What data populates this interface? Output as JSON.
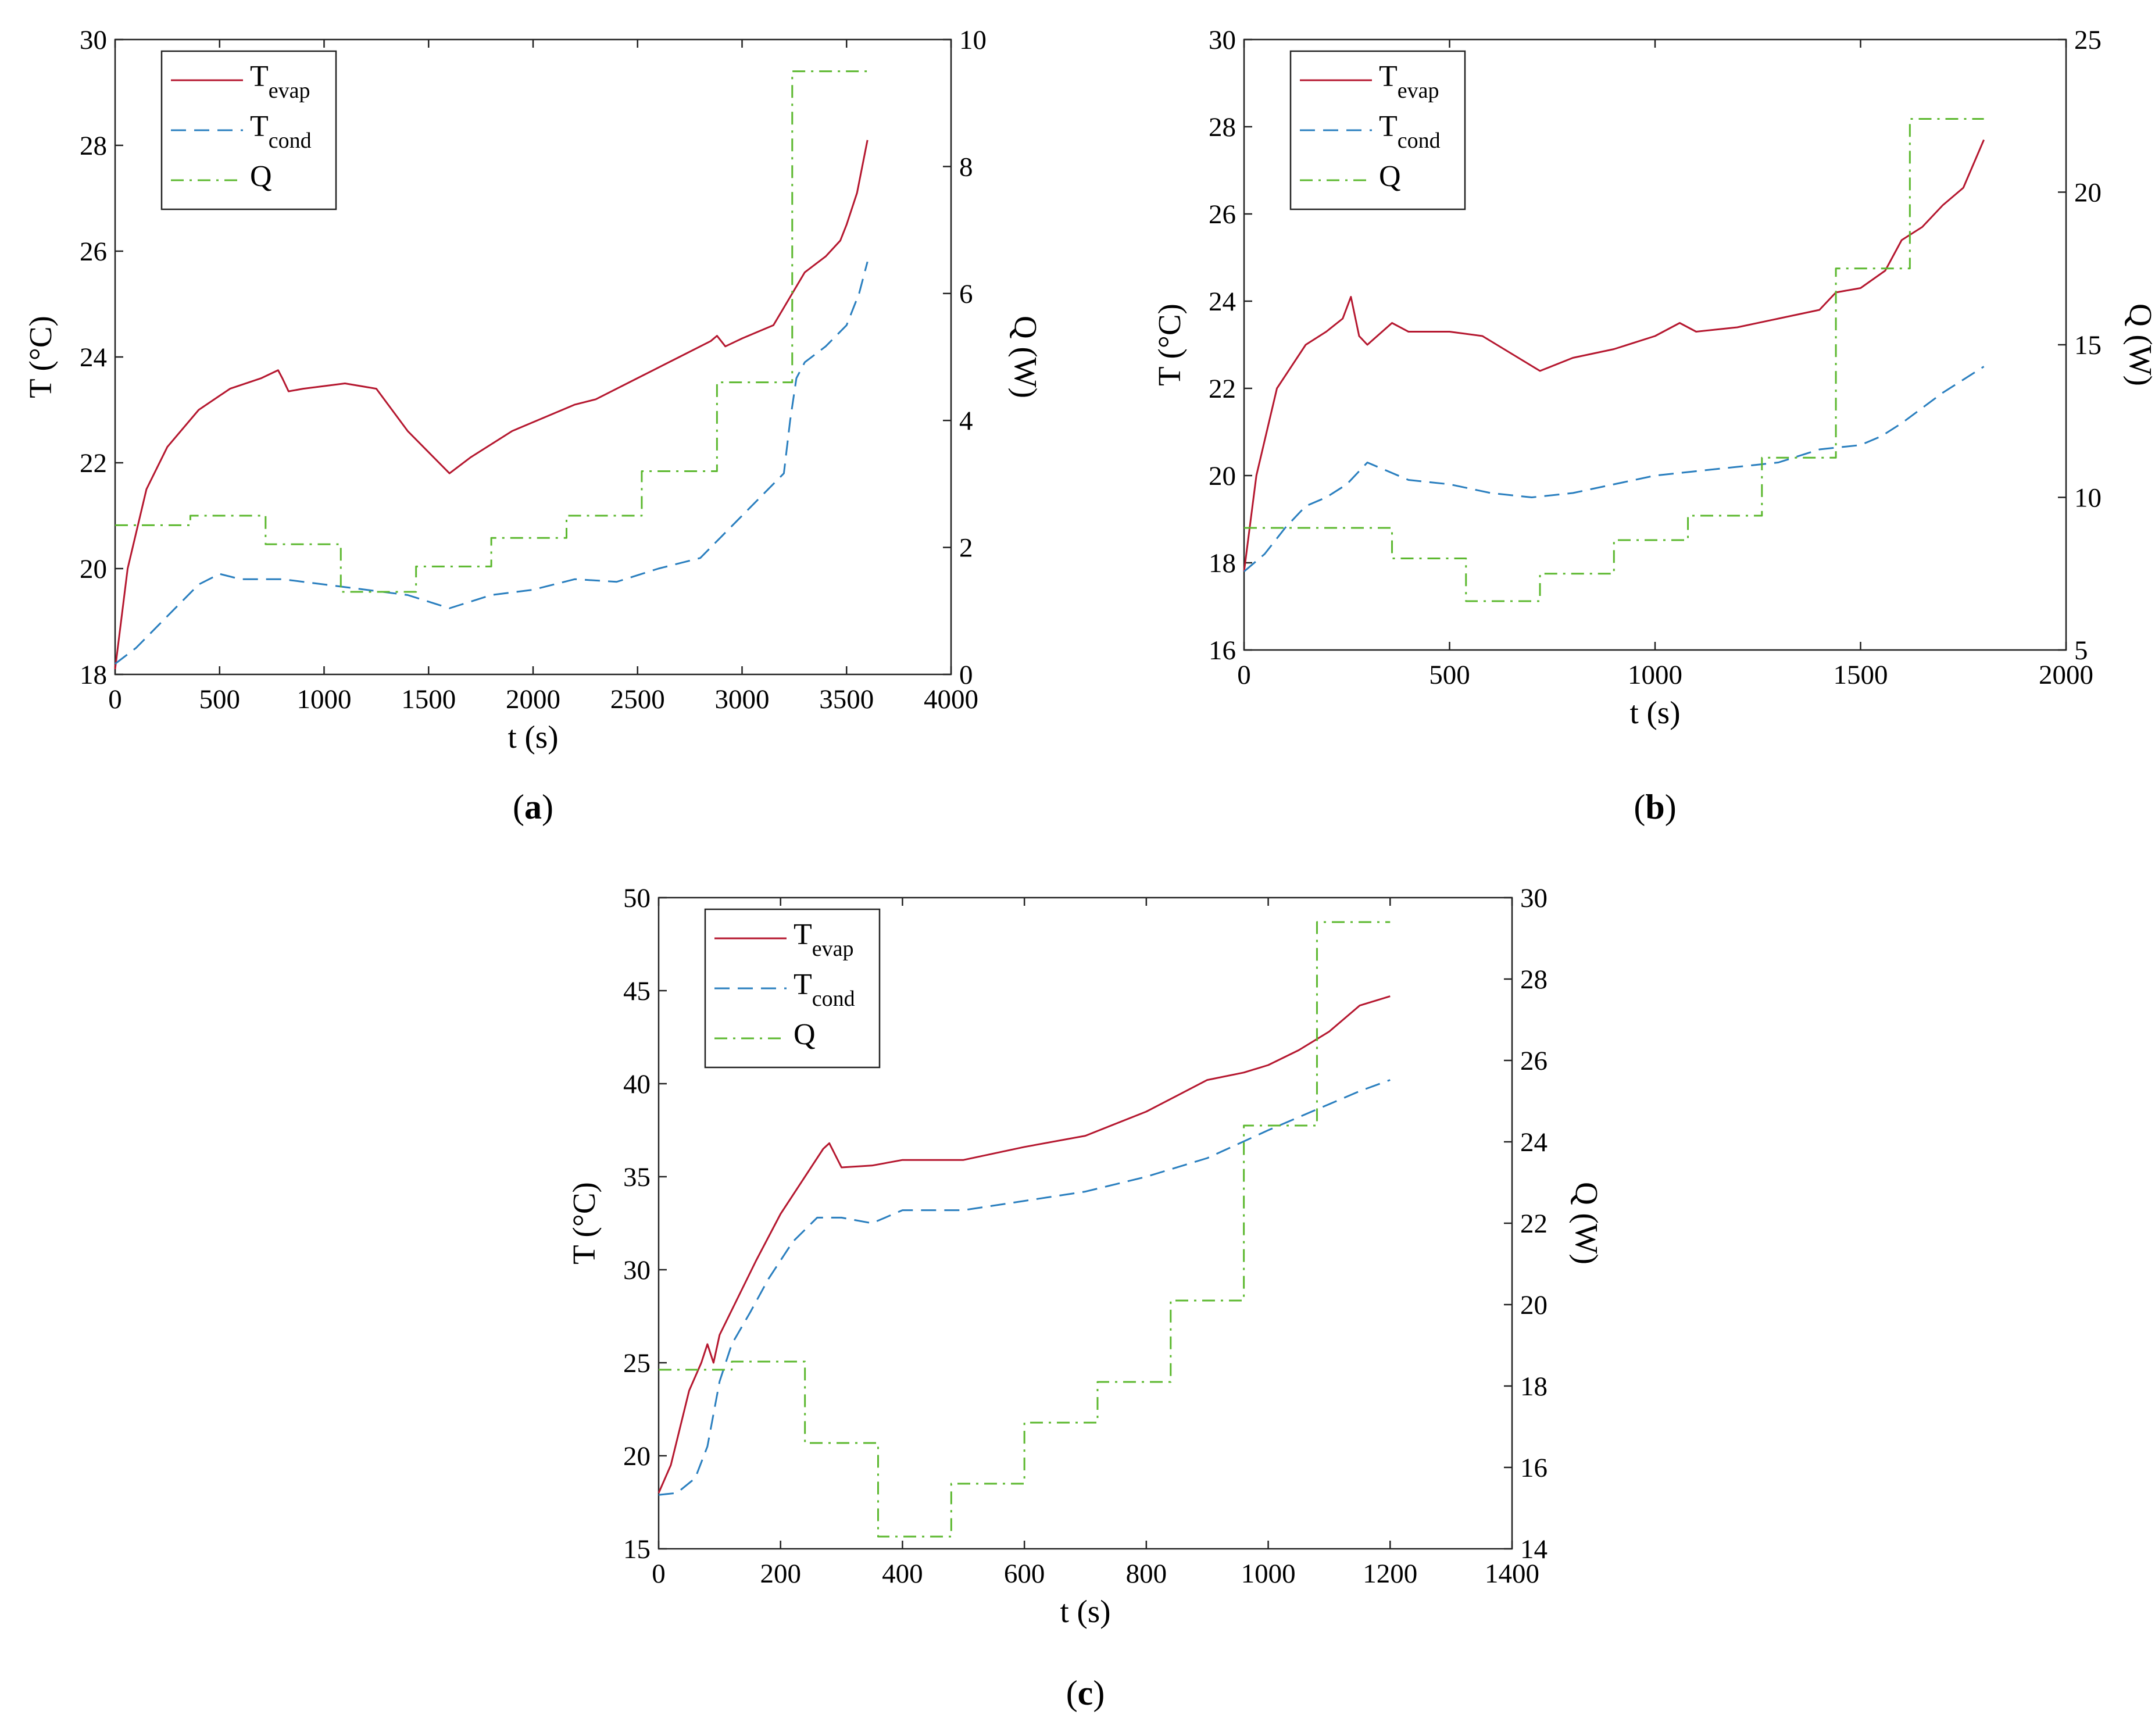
{
  "chart_data": [
    {
      "id": "a",
      "type": "line",
      "panel_label": "a",
      "xlabel": "t (s)",
      "ylabel_left": "T (°C)",
      "ylabel_right": "Q (W)",
      "xlim": [
        0,
        4000
      ],
      "ylim_left": [
        18,
        30
      ],
      "ylim_right": [
        0,
        10
      ],
      "xticks": [
        0,
        500,
        1000,
        1500,
        2000,
        2500,
        3000,
        3500,
        4000
      ],
      "yticks_left": [
        18,
        20,
        22,
        24,
        26,
        28,
        30
      ],
      "yticks_right": [
        0,
        2,
        4,
        6,
        8,
        10
      ],
      "legend": [
        {
          "main": "T",
          "sub": "evap",
          "style": "solid",
          "color": "#b5172f"
        },
        {
          "main": "T",
          "sub": "cond",
          "style": "dashed",
          "color": "#2a7fbf"
        },
        {
          "main": "Q",
          "sub": "",
          "style": "dashdot",
          "color": "#5cb82f"
        }
      ],
      "series": [
        {
          "name": "T_evap",
          "axis": "left",
          "color": "#b5172f",
          "style": "solid",
          "x": [
            0,
            60,
            150,
            250,
            400,
            550,
            700,
            780,
            800,
            830,
            900,
            1100,
            1250,
            1400,
            1500,
            1600,
            1700,
            1900,
            2200,
            2300,
            2500,
            2700,
            2850,
            2880,
            2920,
            3000,
            3150,
            3240,
            3300,
            3400,
            3470,
            3500,
            3550,
            3600
          ],
          "y": [
            18.1,
            20.0,
            21.5,
            22.3,
            23.0,
            23.4,
            23.6,
            23.75,
            23.6,
            23.35,
            23.4,
            23.5,
            23.4,
            22.6,
            22.2,
            21.8,
            22.1,
            22.6,
            23.1,
            23.2,
            23.6,
            24.0,
            24.3,
            24.4,
            24.2,
            24.35,
            24.6,
            25.2,
            25.6,
            25.9,
            26.2,
            26.5,
            27.1,
            28.1
          ]
        },
        {
          "name": "T_cond",
          "axis": "left",
          "color": "#2a7fbf",
          "style": "dashed",
          "x": [
            0,
            100,
            200,
            300,
            400,
            500,
            600,
            800,
            1000,
            1200,
            1400,
            1600,
            1800,
            2000,
            2200,
            2400,
            2600,
            2800,
            2900,
            3000,
            3100,
            3200,
            3230,
            3260,
            3300,
            3400,
            3500,
            3560,
            3600
          ],
          "y": [
            18.2,
            18.5,
            18.9,
            19.3,
            19.7,
            19.9,
            19.8,
            19.8,
            19.7,
            19.6,
            19.5,
            19.25,
            19.5,
            19.6,
            19.8,
            19.75,
            20.0,
            20.2,
            20.6,
            21.0,
            21.4,
            21.8,
            22.8,
            23.6,
            23.9,
            24.2,
            24.6,
            25.2,
            25.8
          ]
        },
        {
          "name": "Q",
          "axis": "right",
          "color": "#5cb82f",
          "style": "dashdot",
          "step": true,
          "x": [
            0,
            360,
            720,
            1080,
            1440,
            1800,
            2160,
            2520,
            2880,
            3240,
            3600
          ],
          "y": [
            2.35,
            2.5,
            2.05,
            1.3,
            1.7,
            2.15,
            2.5,
            3.2,
            4.6,
            9.5,
            9.5
          ]
        }
      ]
    },
    {
      "id": "b",
      "type": "line",
      "panel_label": "b",
      "xlabel": "t (s)",
      "ylabel_left": "T (°C)",
      "ylabel_right": "Q (W)",
      "xlim": [
        0,
        2000
      ],
      "ylim_left": [
        16,
        30
      ],
      "ylim_right": [
        5,
        25
      ],
      "xticks": [
        0,
        500,
        1000,
        1500,
        2000
      ],
      "yticks_left": [
        16,
        18,
        20,
        22,
        24,
        26,
        28,
        30
      ],
      "yticks_right": [
        5,
        10,
        15,
        20,
        25
      ],
      "legend": [
        {
          "main": "T",
          "sub": "evap",
          "style": "solid",
          "color": "#b5172f"
        },
        {
          "main": "T",
          "sub": "cond",
          "style": "dashed",
          "color": "#2a7fbf"
        },
        {
          "main": "Q",
          "sub": "",
          "style": "dashdot",
          "color": "#5cb82f"
        }
      ],
      "series": [
        {
          "name": "T_evap",
          "axis": "left",
          "color": "#b5172f",
          "style": "solid",
          "x": [
            0,
            30,
            80,
            150,
            200,
            240,
            260,
            280,
            300,
            360,
            400,
            500,
            580,
            650,
            720,
            800,
            900,
            1000,
            1060,
            1100,
            1200,
            1300,
            1400,
            1440,
            1500,
            1560,
            1600,
            1650,
            1700,
            1750,
            1800
          ],
          "y": [
            17.8,
            20.0,
            22.0,
            23.0,
            23.3,
            23.6,
            24.1,
            23.2,
            23.0,
            23.5,
            23.3,
            23.3,
            23.2,
            22.8,
            22.4,
            22.7,
            22.9,
            23.2,
            23.5,
            23.3,
            23.4,
            23.6,
            23.8,
            24.2,
            24.3,
            24.7,
            25.4,
            25.7,
            26.2,
            26.6,
            27.7
          ]
        },
        {
          "name": "T_cond",
          "axis": "left",
          "color": "#2a7fbf",
          "style": "dashed",
          "x": [
            0,
            50,
            100,
            150,
            200,
            250,
            300,
            350,
            400,
            500,
            600,
            700,
            800,
            900,
            1000,
            1100,
            1200,
            1300,
            1400,
            1500,
            1550,
            1600,
            1700,
            1800
          ],
          "y": [
            17.8,
            18.2,
            18.8,
            19.3,
            19.5,
            19.8,
            20.3,
            20.1,
            19.9,
            19.8,
            19.6,
            19.5,
            19.6,
            19.8,
            20.0,
            20.1,
            20.2,
            20.3,
            20.6,
            20.7,
            20.9,
            21.2,
            21.9,
            22.5
          ]
        },
        {
          "name": "Q",
          "axis": "right",
          "color": "#5cb82f",
          "style": "dashdot",
          "step": true,
          "x": [
            0,
            180,
            360,
            540,
            720,
            900,
            1080,
            1260,
            1440,
            1620,
            1800
          ],
          "y": [
            9.0,
            9.0,
            8.0,
            6.6,
            7.5,
            8.6,
            9.4,
            11.3,
            17.5,
            22.4,
            22.4
          ]
        }
      ]
    },
    {
      "id": "c",
      "type": "line",
      "panel_label": "c",
      "xlabel": "t (s)",
      "ylabel_left": "T (°C)",
      "ylabel_right": "Q (W)",
      "xlim": [
        0,
        1400
      ],
      "ylim_left": [
        15,
        50
      ],
      "ylim_right": [
        14,
        30
      ],
      "xticks": [
        0,
        200,
        400,
        600,
        800,
        1000,
        1200,
        1400
      ],
      "yticks_left": [
        15,
        20,
        25,
        30,
        35,
        40,
        45,
        50
      ],
      "yticks_right": [
        14,
        16,
        18,
        20,
        22,
        24,
        26,
        28,
        30
      ],
      "legend": [
        {
          "main": "T",
          "sub": "evap",
          "style": "solid",
          "color": "#b5172f"
        },
        {
          "main": "T",
          "sub": "cond",
          "style": "dashed",
          "color": "#2a7fbf"
        },
        {
          "main": "Q",
          "sub": "",
          "style": "dashdot",
          "color": "#5cb82f"
        }
      ],
      "series": [
        {
          "name": "T_evap",
          "axis": "left",
          "color": "#b5172f",
          "style": "solid",
          "x": [
            0,
            20,
            50,
            70,
            80,
            90,
            100,
            130,
            160,
            200,
            240,
            270,
            280,
            300,
            350,
            400,
            500,
            600,
            700,
            800,
            900,
            960,
            1000,
            1050,
            1100,
            1150,
            1200
          ],
          "y": [
            18.0,
            19.5,
            23.5,
            25.0,
            26.0,
            25.0,
            26.5,
            28.5,
            30.5,
            33.0,
            35.0,
            36.5,
            36.8,
            35.5,
            35.6,
            35.9,
            35.9,
            36.6,
            37.2,
            38.5,
            40.2,
            40.6,
            41.0,
            41.8,
            42.8,
            44.2,
            44.7
          ]
        },
        {
          "name": "T_cond",
          "axis": "left",
          "color": "#2a7fbf",
          "style": "dashed",
          "x": [
            0,
            30,
            60,
            80,
            100,
            120,
            150,
            180,
            220,
            260,
            300,
            350,
            400,
            500,
            600,
            700,
            800,
            900,
            1000,
            1050,
            1100,
            1150,
            1200
          ],
          "y": [
            17.9,
            18.0,
            18.8,
            20.5,
            24.0,
            26.0,
            27.7,
            29.5,
            31.5,
            32.8,
            32.8,
            32.5,
            33.2,
            33.2,
            33.7,
            34.2,
            35.0,
            36.0,
            37.5,
            38.2,
            38.9,
            39.6,
            40.2
          ]
        },
        {
          "name": "Q",
          "axis": "right",
          "color": "#5cb82f",
          "style": "dashdot",
          "step": true,
          "x": [
            0,
            120,
            240,
            360,
            480,
            600,
            720,
            840,
            960,
            1080,
            1200
          ],
          "y": [
            18.4,
            18.6,
            16.6,
            14.3,
            15.6,
            17.1,
            18.1,
            20.1,
            24.4,
            29.4,
            29.4
          ]
        }
      ]
    }
  ]
}
